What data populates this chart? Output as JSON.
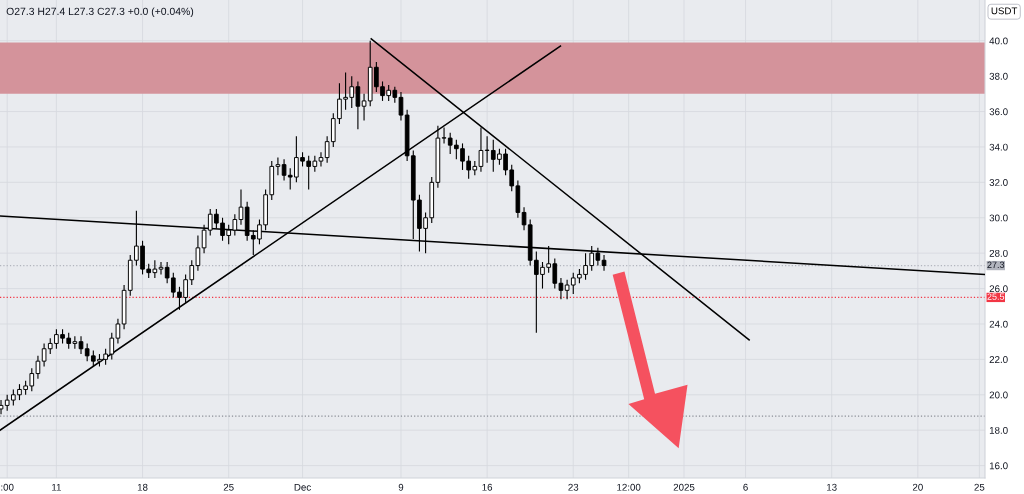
{
  "chart_data": {
    "type": "candlestick",
    "annotations": [
      "O27.3 H27.4 L27.3 C27.3 +0.0 (+0.04%)"
    ],
    "ylabel": "USDT",
    "x": [
      "2024-11-06T12:00",
      "2024-11-07T00:00",
      "2024-11-07T12:00",
      "2024-11-08T00:00",
      "2024-11-08T12:00",
      "2024-11-09T00:00",
      "2024-11-09T12:00",
      "2024-11-10T00:00",
      "2024-11-10T12:00",
      "2024-11-11T00:00",
      "2024-11-11T12:00",
      "2024-11-12T00:00",
      "2024-11-12T12:00",
      "2024-11-13T00:00",
      "2024-11-13T12:00",
      "2024-11-14T00:00",
      "2024-11-14T12:00",
      "2024-11-15T00:00",
      "2024-11-15T12:00",
      "2024-11-16T00:00",
      "2024-11-16T12:00",
      "2024-11-17T00:00",
      "2024-11-17T12:00",
      "2024-11-18T00:00",
      "2024-11-18T12:00",
      "2024-11-19T00:00",
      "2024-11-19T12:00",
      "2024-11-20T00:00",
      "2024-11-20T12:00",
      "2024-11-21T00:00",
      "2024-11-21T12:00",
      "2024-11-22T00:00",
      "2024-11-22T12:00",
      "2024-11-23T00:00",
      "2024-11-23T12:00",
      "2024-11-24T00:00",
      "2024-11-24T12:00",
      "2024-11-25T00:00",
      "2024-11-25T12:00",
      "2024-11-26T00:00",
      "2024-11-26T12:00",
      "2024-11-27T00:00",
      "2024-11-27T12:00",
      "2024-11-28T00:00",
      "2024-11-28T12:00",
      "2024-11-29T00:00",
      "2024-11-29T12:00",
      "2024-11-30T00:00",
      "2024-11-30T12:00",
      "2024-12-01T00:00",
      "2024-12-01T12:00",
      "2024-12-02T00:00",
      "2024-12-02T12:00",
      "2024-12-03T00:00",
      "2024-12-03T12:00",
      "2024-12-04T00:00",
      "2024-12-04T12:00",
      "2024-12-05T00:00",
      "2024-12-05T12:00",
      "2024-12-06T00:00",
      "2024-12-06T12:00",
      "2024-12-07T00:00",
      "2024-12-07T12:00",
      "2024-12-08T00:00",
      "2024-12-08T12:00",
      "2024-12-09T00:00",
      "2024-12-09T12:00",
      "2024-12-10T00:00",
      "2024-12-10T12:00",
      "2024-12-11T00:00",
      "2024-12-11T12:00",
      "2024-12-12T00:00",
      "2024-12-12T12:00",
      "2024-12-13T00:00",
      "2024-12-13T12:00",
      "2024-12-14T00:00",
      "2024-12-14T12:00",
      "2024-12-15T00:00",
      "2024-12-15T12:00",
      "2024-12-16T00:00",
      "2024-12-16T12:00",
      "2024-12-17T00:00",
      "2024-12-17T12:00",
      "2024-12-18T00:00",
      "2024-12-18T12:00",
      "2024-12-19T00:00",
      "2024-12-19T12:00",
      "2024-12-20T00:00",
      "2024-12-20T12:00",
      "2024-12-21T00:00",
      "2024-12-21T12:00",
      "2024-12-22T00:00",
      "2024-12-22T12:00",
      "2024-12-23T00:00",
      "2024-12-23T12:00",
      "2024-12-24T00:00",
      "2024-12-24T12:00",
      "2024-12-25T00:00",
      "2024-12-25T12:00"
    ],
    "series": [
      {
        "color": "#000000",
        "ohlc": [
          [
            19.2,
            19.7,
            18.9,
            19.4
          ],
          [
            19.4,
            20.0,
            19.1,
            19.7
          ],
          [
            19.7,
            20.3,
            19.4,
            20.0
          ],
          [
            20.0,
            20.6,
            19.7,
            20.3
          ],
          [
            20.3,
            20.8,
            20.0,
            20.5
          ],
          [
            20.5,
            21.5,
            20.2,
            21.2
          ],
          [
            21.2,
            22.2,
            20.9,
            21.9
          ],
          [
            21.9,
            22.9,
            21.6,
            22.6
          ],
          [
            22.6,
            23.2,
            22.3,
            22.9
          ],
          [
            22.9,
            23.7,
            22.6,
            23.4
          ],
          [
            23.4,
            23.7,
            22.9,
            23.2
          ],
          [
            23.2,
            23.5,
            22.6,
            22.9
          ],
          [
            22.9,
            23.3,
            22.6,
            23.0
          ],
          [
            23.0,
            23.3,
            22.3,
            22.6
          ],
          [
            22.6,
            22.9,
            21.9,
            22.2
          ],
          [
            22.2,
            22.5,
            21.6,
            21.9
          ],
          [
            21.9,
            22.3,
            21.6,
            22.0
          ],
          [
            22.0,
            22.6,
            21.7,
            22.3
          ],
          [
            22.3,
            23.5,
            22.0,
            23.2
          ],
          [
            23.2,
            24.3,
            22.9,
            24.0
          ],
          [
            24.0,
            26.2,
            23.7,
            25.9
          ],
          [
            25.9,
            27.9,
            25.6,
            27.6
          ],
          [
            27.6,
            30.4,
            27.3,
            28.4
          ],
          [
            28.4,
            28.7,
            26.8,
            27.1
          ],
          [
            27.1,
            27.4,
            26.6,
            26.9
          ],
          [
            26.9,
            27.6,
            26.6,
            27.1
          ],
          [
            27.1,
            27.5,
            26.8,
            27.2
          ],
          [
            27.2,
            27.5,
            26.3,
            26.6
          ],
          [
            26.6,
            26.9,
            25.5,
            25.8
          ],
          [
            25.8,
            26.1,
            24.8,
            25.5
          ],
          [
            25.5,
            26.8,
            25.2,
            26.5
          ],
          [
            26.5,
            27.6,
            26.2,
            27.3
          ],
          [
            27.3,
            29.0,
            27.0,
            28.3
          ],
          [
            28.3,
            29.6,
            28.0,
            29.3
          ],
          [
            29.3,
            30.5,
            29.0,
            30.2
          ],
          [
            30.2,
            30.5,
            29.4,
            29.7
          ],
          [
            29.7,
            30.0,
            28.7,
            29.0
          ],
          [
            29.0,
            29.6,
            28.5,
            29.3
          ],
          [
            29.3,
            30.2,
            29.0,
            29.9
          ],
          [
            29.9,
            31.6,
            29.6,
            30.6
          ],
          [
            30.6,
            30.9,
            28.7,
            29.0
          ],
          [
            29.0,
            29.3,
            27.9,
            28.8
          ],
          [
            28.8,
            29.9,
            28.5,
            29.6
          ],
          [
            29.6,
            31.6,
            29.3,
            31.3
          ],
          [
            31.3,
            33.2,
            31.0,
            32.9
          ],
          [
            32.9,
            33.4,
            32.4,
            33.0
          ],
          [
            33.0,
            33.3,
            32.1,
            32.4
          ],
          [
            32.4,
            32.8,
            31.6,
            32.3
          ],
          [
            32.3,
            34.6,
            32.0,
            33.4
          ],
          [
            33.4,
            33.7,
            32.9,
            33.2
          ],
          [
            33.2,
            33.5,
            31.6,
            32.9
          ],
          [
            32.9,
            33.5,
            32.6,
            33.2
          ],
          [
            33.2,
            33.7,
            32.9,
            33.4
          ],
          [
            33.4,
            34.6,
            33.1,
            34.3
          ],
          [
            34.3,
            35.9,
            34.0,
            35.6
          ],
          [
            35.6,
            37.6,
            35.3,
            36.7
          ],
          [
            36.7,
            38.2,
            36.1,
            36.8
          ],
          [
            36.8,
            38.0,
            36.2,
            37.4
          ],
          [
            37.4,
            37.7,
            35.0,
            36.3
          ],
          [
            36.3,
            37.0,
            35.5,
            36.6
          ],
          [
            36.6,
            40.0,
            36.3,
            38.5
          ],
          [
            38.5,
            38.8,
            37.1,
            37.4
          ],
          [
            37.4,
            37.7,
            36.6,
            36.9
          ],
          [
            36.9,
            37.5,
            36.6,
            37.2
          ],
          [
            37.2,
            37.4,
            36.5,
            36.8
          ],
          [
            36.8,
            37.1,
            35.5,
            35.8
          ],
          [
            35.8,
            36.1,
            33.2,
            33.5
          ],
          [
            33.5,
            33.8,
            28.8,
            31.0
          ],
          [
            31.0,
            31.3,
            28.1,
            29.4
          ],
          [
            29.4,
            30.3,
            28.0,
            30.0
          ],
          [
            30.0,
            32.3,
            29.7,
            32.0
          ],
          [
            32.0,
            35.2,
            31.7,
            34.5
          ],
          [
            34.5,
            35.1,
            34.2,
            34.5
          ],
          [
            34.5,
            34.8,
            33.6,
            34.1
          ],
          [
            34.1,
            34.4,
            33.3,
            33.9
          ],
          [
            33.9,
            34.2,
            32.7,
            33.2
          ],
          [
            33.2,
            33.5,
            32.2,
            32.7
          ],
          [
            32.7,
            33.2,
            32.4,
            32.9
          ],
          [
            32.9,
            35.1,
            32.6,
            33.8
          ],
          [
            33.8,
            34.6,
            33.1,
            33.8
          ],
          [
            33.8,
            34.4,
            32.6,
            33.3
          ],
          [
            33.3,
            33.9,
            33.0,
            33.6
          ],
          [
            33.6,
            33.9,
            32.4,
            32.7
          ],
          [
            32.7,
            33.0,
            31.5,
            31.8
          ],
          [
            31.8,
            32.1,
            30.0,
            30.3
          ],
          [
            30.3,
            30.6,
            29.3,
            29.6
          ],
          [
            29.6,
            29.9,
            27.3,
            27.6
          ],
          [
            27.6,
            28.1,
            23.5,
            26.8
          ],
          [
            26.8,
            27.5,
            26.0,
            27.2
          ],
          [
            27.2,
            28.4,
            26.9,
            27.4
          ],
          [
            27.4,
            27.7,
            26.0,
            26.3
          ],
          [
            26.3,
            26.6,
            25.4,
            25.9
          ],
          [
            25.9,
            26.5,
            25.4,
            26.2
          ],
          [
            26.2,
            26.9,
            25.7,
            26.6
          ],
          [
            26.6,
            27.1,
            26.3,
            26.8
          ],
          [
            26.8,
            28.0,
            26.5,
            27.3
          ],
          [
            27.3,
            28.4,
            27.0,
            28.0
          ],
          [
            28.0,
            28.3,
            27.3,
            27.6
          ],
          [
            27.6,
            27.9,
            27.0,
            27.3
          ]
        ]
      },
      {
        "type": "line",
        "color": "#000000",
        "x": [
          "2024-11-06T10:00",
          "2024-12-21T23:00"
        ],
        "values": [
          18.0,
          39.7
        ]
      },
      {
        "type": "line",
        "color": "#000000",
        "x": [
          "2024-12-06T14:00",
          "2025-01-06T07:00"
        ],
        "values": [
          40.1,
          23.1
        ]
      },
      {
        "type": "line",
        "color": "#000000",
        "x": [
          "2024-11-06T10:00",
          "2025-01-25T11:00"
        ],
        "values": [
          30.1,
          26.8
        ]
      }
    ],
    "line_style": "solid",
    "marker": "none",
    "bands": [
      {
        "axis": "y",
        "from": 37.0,
        "to": 39.9,
        "color": "#d4939b"
      }
    ],
    "ref_lines": [
      {
        "axis": "y",
        "value": 18.8,
        "color": "#8a8e96",
        "line_style": "dotted"
      },
      {
        "axis": "y",
        "value": 25.5,
        "label": "25.5",
        "color": "#f23645",
        "line_style": "dotted"
      },
      {
        "axis": "y",
        "value": 27.3,
        "label": "27.3",
        "color": "#b2b5be",
        "line_style": "dotted"
      }
    ],
    "xlim": [
      "2024-11-06T10:00",
      "2025-01-25T11:00"
    ],
    "xticks": [
      {
        "value": "2024-11-07T00:00",
        "label": ":00"
      },
      {
        "value": "2024-11-11",
        "label": "11"
      },
      {
        "value": "2024-11-18",
        "label": "18"
      },
      {
        "value": "2024-11-25",
        "label": "25"
      },
      {
        "value": "2024-12-01",
        "label": "Dec"
      },
      {
        "value": "2024-12-09",
        "label": "9"
      },
      {
        "value": "2024-12-16",
        "label": "16"
      },
      {
        "value": "2024-12-23",
        "label": "23"
      },
      {
        "value": "2024-12-27T12:00",
        "label": "12:00"
      },
      {
        "value": "2025-01-01",
        "label": "2025"
      },
      {
        "value": "2025-01-06",
        "label": "6"
      },
      {
        "value": "2025-01-13",
        "label": "13"
      },
      {
        "value": "2025-01-20",
        "label": "20"
      },
      {
        "value": "2025-01-25",
        "label": "25"
      }
    ],
    "ylim": [
      15.3,
      42.3
    ],
    "yticks": [
      {
        "value": 16,
        "label": "16.0"
      },
      {
        "value": 18,
        "label": "18.0"
      },
      {
        "value": 20,
        "label": "20.0"
      },
      {
        "value": 22,
        "label": "22.0"
      },
      {
        "value": 24,
        "label": "24.0"
      },
      {
        "value": 26,
        "label": "26.0"
      },
      {
        "value": 28,
        "label": "28.0"
      },
      {
        "value": 30,
        "label": "30.0"
      },
      {
        "value": 32,
        "label": "32.0"
      },
      {
        "value": 34,
        "label": "34.0"
      },
      {
        "value": 36,
        "label": "36.0"
      },
      {
        "value": 38,
        "label": "38.0"
      },
      {
        "value": 40,
        "label": "40.0"
      }
    ],
    "grid": true,
    "legend": false
  }
}
